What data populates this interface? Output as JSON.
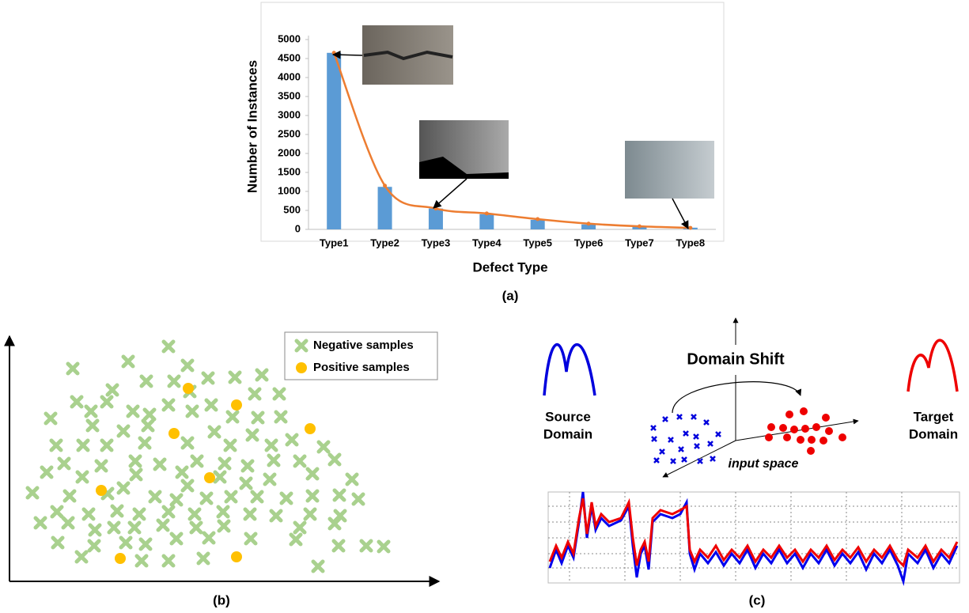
{
  "chart_data": [
    {
      "type": "bar",
      "caption": "(a)",
      "xlabel": "Defect Type",
      "ylabel": "Number of Instances",
      "categories": [
        "Type1",
        "Type2",
        "Type3",
        "Type4",
        "Type5",
        "Type6",
        "Type7",
        "Type8"
      ],
      "series": [
        {
          "type": "bar",
          "color": "#5b9bd5",
          "values": [
            4650,
            1120,
            550,
            400,
            250,
            130,
            75,
            45
          ]
        },
        {
          "type": "line",
          "color": "#ed7d31",
          "values": [
            4650,
            1150,
            550,
            420,
            270,
            150,
            80,
            40
          ]
        }
      ],
      "ylim": [
        0,
        5000
      ],
      "yticks": [
        0,
        500,
        1000,
        1500,
        2000,
        2500,
        3000,
        3500,
        4000,
        4500,
        5000
      ]
    },
    {
      "type": "scatter",
      "caption": "(b)",
      "legend": "top-right",
      "xlim": [
        12,
        555
      ],
      "ylim": [
        735,
        425
      ],
      "series": [
        {
          "name": "Negative samples",
          "color": "#a9d18e",
          "marker": "x",
          "x": [
            213,
            162,
            237,
            92,
            185,
            220,
            263,
            297,
            331,
            142,
            240,
            322,
            97,
            135,
            213,
            267,
            353,
            64,
            115,
            168,
            189,
            243,
            294,
            355,
            117,
            156,
            187,
            271,
            326,
            71,
            105,
            135,
            183,
            237,
            291,
            319,
            369,
            409,
            343,
            81,
            128,
            171,
            202,
            249,
            284,
            313,
            346,
            379,
            423,
            59,
            104,
            156,
            172,
            230,
            278,
            311,
            341,
            395,
            445,
            41,
            88,
            136,
            196,
            237,
            223,
            261,
            292,
            325,
            362,
            395,
            429,
            453,
            72,
            112,
            148,
            176,
            213,
            246,
            282,
            316,
            349,
            392,
            430,
            51,
            86,
            120,
            144,
            170,
            206,
            248,
            283,
            379,
            423,
            73,
            119,
            159,
            184,
            223,
            264,
            317,
            374,
            428,
            463,
            485,
            103,
            179,
            213,
            257,
            402
          ],
          "y": [
            438,
            457,
            462,
            466,
            482,
            482,
            478,
            477,
            474,
            493,
            495,
            498,
            508,
            508,
            512,
            512,
            498,
            529,
            520,
            520,
            524,
            520,
            527,
            527,
            538,
            545,
            538,
            546,
            528,
            563,
            563,
            563,
            560,
            560,
            563,
            550,
            556,
            565,
            563,
            586,
            589,
            583,
            587,
            583,
            586,
            589,
            582,
            583,
            581,
            597,
            603,
            617,
            600,
            597,
            603,
            611,
            606,
            599,
            606,
            623,
            627,
            624,
            628,
            614,
            632,
            630,
            628,
            628,
            630,
            627,
            626,
            631,
            647,
            650,
            646,
            650,
            647,
            650,
            647,
            650,
            652,
            650,
            652,
            661,
            661,
            670,
            667,
            667,
            664,
            667,
            665,
            667,
            662,
            686,
            690,
            686,
            688,
            681,
            680,
            681,
            682,
            690,
            690,
            691,
            704,
            709,
            709,
            706,
            716
          ]
        },
        {
          "name": "Positive samples",
          "color": "#ffc000",
          "marker": "o",
          "x": [
            238,
            299,
            220,
            392,
            265,
            128,
            152,
            299
          ],
          "y": [
            491,
            512,
            548,
            542,
            604,
            620,
            706,
            704
          ]
        }
      ]
    }
  ],
  "diagram": {
    "caption": "(c)",
    "shift": "Domain Shift",
    "source": [
      "Source",
      "Domain"
    ],
    "target": [
      "Target",
      "Domain"
    ],
    "space": "input space"
  }
}
